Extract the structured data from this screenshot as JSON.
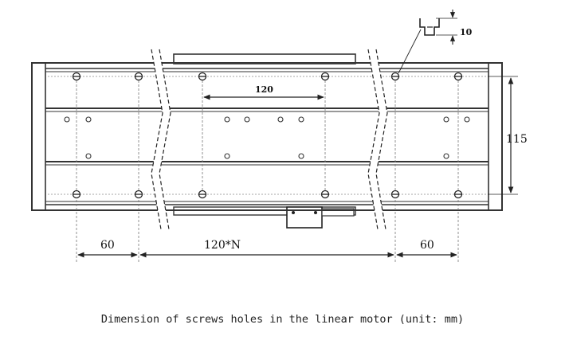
{
  "drawing": {
    "dimensions": {
      "slot_depth": "10",
      "hole_pitch": "120",
      "row_spacing": "115",
      "left_end": "60",
      "middle": "120*N",
      "right_end": "60"
    }
  },
  "caption": "Dimension of screws holes in the linear motor (unit: mm)",
  "colors": {
    "line": "#222222",
    "frame": "#444444",
    "dashed": "#777777"
  }
}
